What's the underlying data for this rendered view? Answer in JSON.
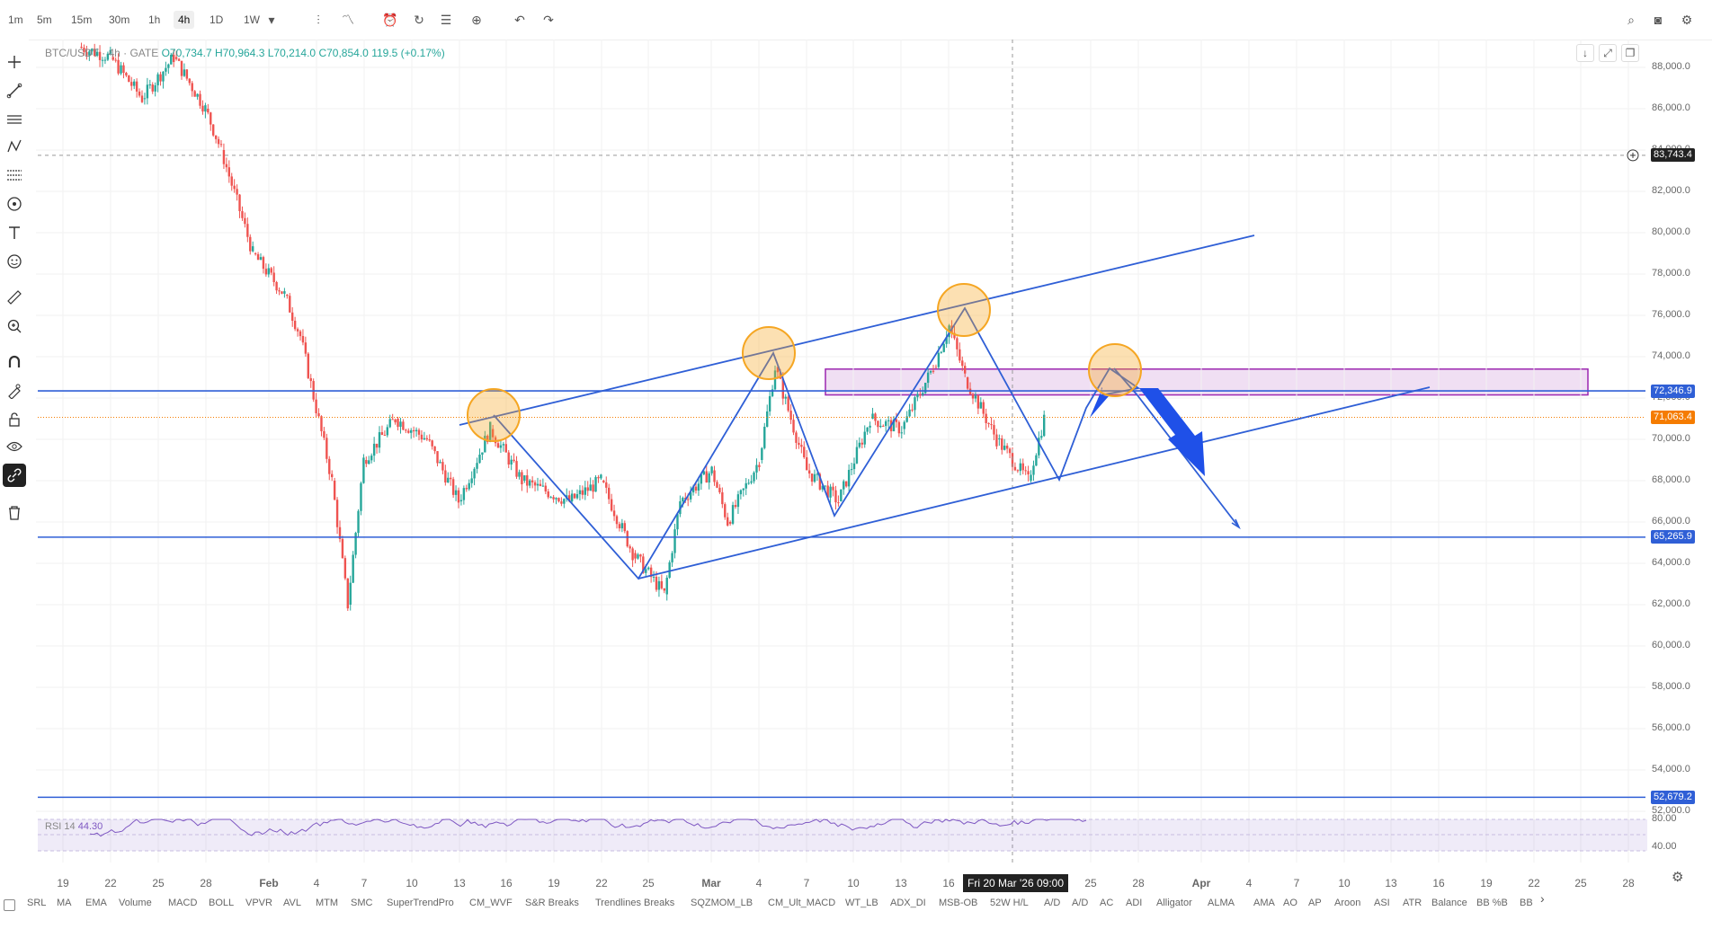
{
  "toolbar": {
    "timeframes": [
      "1m",
      "5m",
      "15m",
      "30m",
      "1h",
      "4h",
      "1D",
      "1W"
    ],
    "active_timeframe": "4h",
    "right_icons": [
      "search-icon",
      "camera-icon",
      "settings-icon"
    ]
  },
  "ohlc": {
    "symbol": "BTC/USDT · 4h · GATE",
    "open": "O70,734.7",
    "high": "H70,964.3",
    "low": "L70,214.0",
    "close": "C70,854.0",
    "change": "119.5 (+0.17%)"
  },
  "price_axis": {
    "ticks": [
      "88,000.0",
      "86,000.0",
      "84,000.0",
      "82,000.0",
      "80,000.0",
      "78,000.0",
      "76,000.0",
      "74,000.0",
      "72,000.0",
      "70,000.0",
      "68,000.0",
      "66,000.0",
      "64,000.0",
      "62,000.0",
      "60,000.0",
      "58,000.0",
      "56,000.0",
      "54,000.0",
      "52,000.0"
    ]
  },
  "price_tags": {
    "crosshair": "83,743.4",
    "level_upper": "72,346.9",
    "last_price": "71,063.4",
    "level_mid": "65,265.9",
    "level_low": "52,679.2"
  },
  "colors": {
    "line_blue": "#2f5fd6",
    "candle_up": "#26a69a",
    "candle_down": "#ef5350",
    "last_price": "#f57c00",
    "zone": "#9c27b0",
    "circle": "#f5a623",
    "rsi": "#7e57c2"
  },
  "time_axis": {
    "labels": [
      "19",
      "22",
      "25",
      "28",
      "Feb",
      "4",
      "7",
      "10",
      "13",
      "16",
      "19",
      "22",
      "25",
      "Mar",
      "4",
      "7",
      "10",
      "13",
      "16",
      "25",
      "28",
      "Apr",
      "4",
      "7",
      "10",
      "13",
      "16",
      "19",
      "22",
      "25",
      "28"
    ],
    "crosshair_date": "Fri 20 Mar '26   09:00"
  },
  "rsi": {
    "label": "RSI 14",
    "value": "44.30",
    "ticks": [
      "80.00",
      "40.00"
    ]
  },
  "indicators": [
    "SRL",
    "MA",
    "EMA",
    "Volume",
    "MACD",
    "BOLL",
    "VPVR",
    "AVL",
    "MTM",
    "SMC",
    "SuperTrendPro",
    "CM_WVF",
    "S&R Breaks",
    "Trendlines Breaks",
    "SQZMOM_LB",
    "CM_Ult_MACD",
    "WT_LB",
    "ADX_DI",
    "MSB-OB",
    "52W H/L",
    "A/D",
    "A/D",
    "AC",
    "ADI",
    "Alligator",
    "ALMA",
    "AMA",
    "AO",
    "AP",
    "Aroon",
    "ASI",
    "ATR",
    "Balance",
    "BB %B",
    "BB"
  ],
  "chart_data": {
    "type": "candlestick",
    "symbol": "BTC/USDT",
    "interval": "4h",
    "exchange": "GATE",
    "y_range": [
      51000,
      90000
    ],
    "horizontal_levels": [
      72346.9,
      65265.9,
      52679.2
    ],
    "last_price": 71063.4,
    "price_path": [
      [
        "Jan 20",
        89000
      ],
      [
        "Jan 22",
        88500
      ],
      [
        "Jan 24",
        86500
      ],
      [
        "Jan 26",
        88500
      ],
      [
        "Jan 28",
        86000
      ],
      [
        "Jan 29",
        84000
      ],
      [
        "Jan 31",
        79000
      ],
      [
        "Feb 2",
        77000
      ],
      [
        "Feb 3",
        75000
      ],
      [
        "Feb 5",
        68000
      ],
      [
        "Feb 6",
        62000
      ],
      [
        "Feb 7",
        69000
      ],
      [
        "Feb 9",
        71000
      ],
      [
        "Feb 11",
        70000
      ],
      [
        "Feb 13",
        67000
      ],
      [
        "Feb 15",
        70500
      ],
      [
        "Feb 17",
        68000
      ],
      [
        "Feb 20",
        67000
      ],
      [
        "Feb 22",
        68000
      ],
      [
        "Feb 24",
        64500
      ],
      [
        "Feb 26",
        62500
      ],
      [
        "Feb 27",
        67000
      ],
      [
        "Mar 1",
        68500
      ],
      [
        "Mar 2",
        66000
      ],
      [
        "Mar 4",
        69000
      ],
      [
        "Mar 5",
        73500
      ],
      [
        "Mar 7",
        68500
      ],
      [
        "Mar 9",
        67000
      ],
      [
        "Mar 11",
        71000
      ],
      [
        "Mar 13",
        70500
      ],
      [
        "Mar 15",
        73500
      ],
      [
        "Mar 16",
        75500
      ],
      [
        "Mar 17",
        73000
      ],
      [
        "Mar 19",
        70000
      ],
      [
        "Mar 21",
        68000
      ],
      [
        "Mar 22",
        71000
      ]
    ]
  }
}
